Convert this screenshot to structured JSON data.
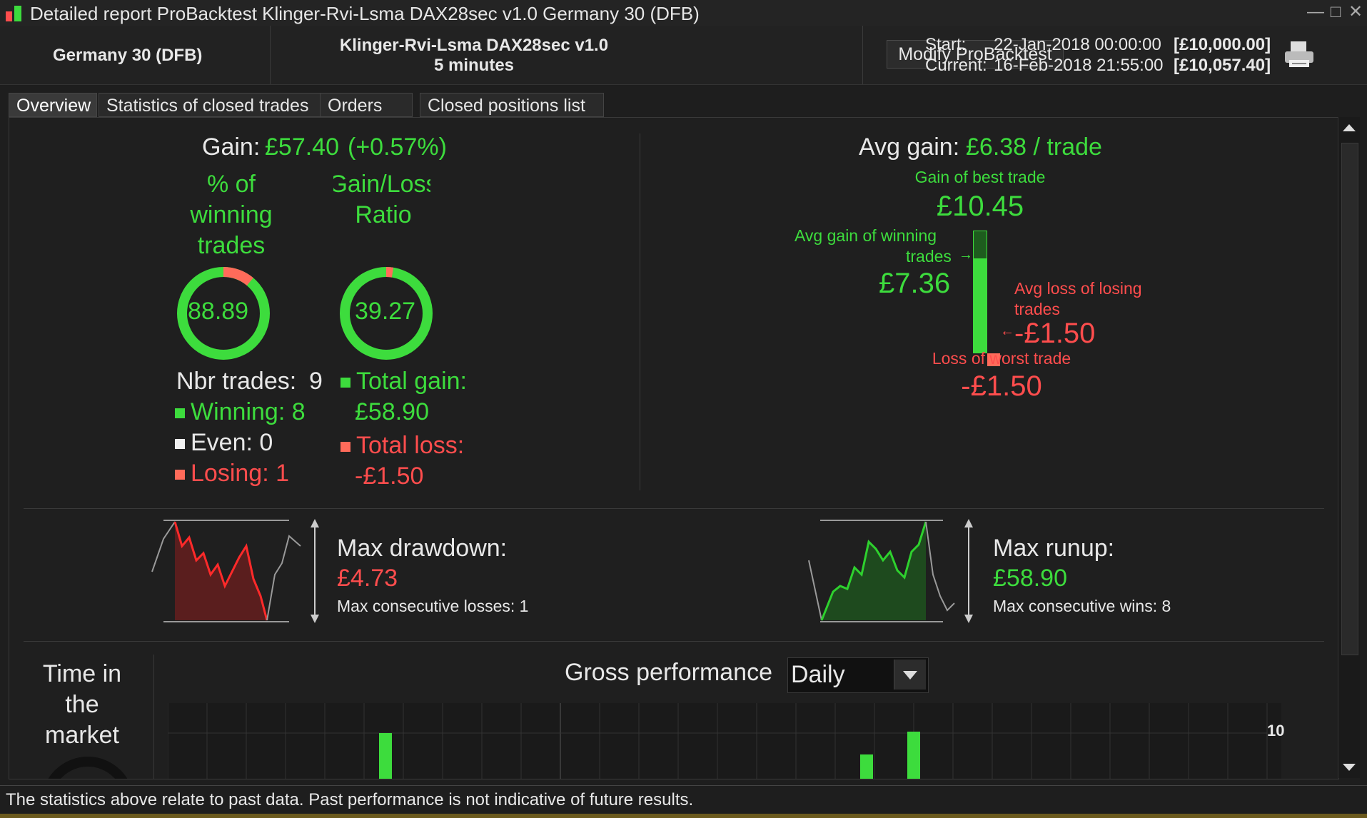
{
  "window": {
    "title": "Detailed report ProBacktest Klinger-Rvi-Lsma DAX28sec v1.0 Germany 30 (DFB)"
  },
  "header": {
    "instrument": "Germany 30 (DFB)",
    "strategy_name": "Klinger-Rvi-Lsma DAX28sec v1.0",
    "timeframe": "5 minutes",
    "modify_button": "Modify ProBacktest",
    "start_label": "Start:",
    "start_value": "22-Jan-2018 00:00:00",
    "start_capital": "[£10,000.00]",
    "current_label": "Current:",
    "current_value": "16-Feb-2018 21:55:00",
    "current_capital": "[£10,057.40]"
  },
  "tabs": [
    {
      "label": "Overview",
      "active": true
    },
    {
      "label": "Statistics of closed trades",
      "active": false
    },
    {
      "label": "Orders list",
      "active": false
    },
    {
      "label": "Closed positions list",
      "active": false
    }
  ],
  "overview": {
    "gain_label": "Gain:",
    "gain_value": "£57.40",
    "gain_percent": "(+0.57%)",
    "winning_label": "% of winning trades",
    "winning_value": "88.89",
    "winning_fraction": 0.8889,
    "gl_label": "Gain/Loss Ratio",
    "gl_value": "39.27",
    "gl_fraction": 0.9751,
    "nbr_trades_label": "Nbr trades:",
    "nbr_trades_value": "9",
    "winning_count_label": "Winning:",
    "winning_count": "8",
    "even_label": "Even:",
    "even_count": "0",
    "losing_label": "Losing:",
    "losing_count": "1",
    "total_gain_label": "Total gain:",
    "total_gain_value": "£58.90",
    "total_loss_label": "Total loss:",
    "total_loss_value": "-£1.50",
    "avg_gain_label": "Avg gain:",
    "avg_gain_value": "£6.38 / trade",
    "best_trade_label": "Gain of best trade",
    "best_trade_value": "£10.45",
    "avg_win_label_1": "Avg gain of winning",
    "avg_win_label_2": "trades",
    "avg_win_value": "£7.36",
    "avg_loss_label_1": "Avg loss of losing",
    "avg_loss_label_2": "trades",
    "avg_loss_value": "-£1.50",
    "worst_trade_label": "Loss of worst trade",
    "worst_trade_value": "-£1.50",
    "max_drawdown_label": "Max drawdown:",
    "max_drawdown_value": "£4.73",
    "max_consec_losses_label": "Max consecutive losses:",
    "max_consec_losses": "1",
    "max_runup_label": "Max runup:",
    "max_runup_value": "£58.90",
    "max_consec_wins_label": "Max consecutive wins:",
    "max_consec_wins": "8",
    "time_in_market_label_1": "Time in",
    "time_in_market_label_2": "the",
    "time_in_market_label_3": "market",
    "gross_perf_label": "Gross performance",
    "period_selected": "Daily",
    "gross_axis_tick": "10"
  },
  "footer": {
    "disclaimer": "The statistics above relate to past data. Past performance is not indicative of future results."
  },
  "colors": {
    "green": "#3ddc3d",
    "red": "#ff4d4d",
    "background": "#1e1e1e"
  }
}
